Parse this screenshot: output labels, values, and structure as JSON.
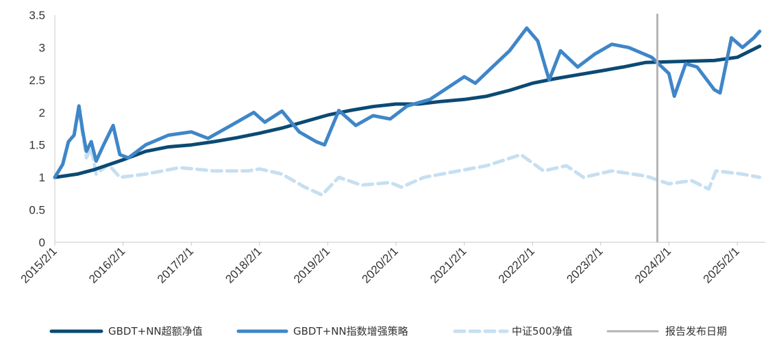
{
  "chart_data": {
    "type": "line",
    "yticks": [
      "0",
      "0.5",
      "1",
      "1.5",
      "2",
      "2.5",
      "3",
      "3.5"
    ],
    "xticks": [
      "2015/2/1",
      "2016/2/1",
      "2017/2/1",
      "2018/2/1",
      "2019/2/1",
      "2020/2/1",
      "2021/2/1",
      "2022/2/1",
      "2023/2/1",
      "2024/2/1",
      "2025/2/1"
    ],
    "ylim": [
      0,
      3.5
    ],
    "xlim": [
      "2015-02-01",
      "2025-07-01"
    ],
    "grid": false,
    "legend_position": "bottom",
    "report_date": "2023-12-01",
    "colors": {
      "excess": "#0b4a73",
      "strategy": "#3f86c8",
      "csi500": "#c6dff1",
      "report": "#b3b3b3",
      "axis": "#c8c8c8"
    },
    "series": [
      {
        "key": "excess",
        "name": "GBDT+NN超额净值",
        "style": "solid",
        "points": [
          [
            "2015-02-01",
            1.0
          ],
          [
            "2015-06-01",
            1.05
          ],
          [
            "2015-09-01",
            1.12
          ],
          [
            "2016-02-01",
            1.27
          ],
          [
            "2016-06-01",
            1.4
          ],
          [
            "2016-10-01",
            1.47
          ],
          [
            "2017-02-01",
            1.5
          ],
          [
            "2017-06-01",
            1.55
          ],
          [
            "2017-10-01",
            1.61
          ],
          [
            "2018-02-01",
            1.68
          ],
          [
            "2018-06-01",
            1.76
          ],
          [
            "2018-10-01",
            1.86
          ],
          [
            "2019-02-01",
            1.96
          ],
          [
            "2019-06-01",
            2.03
          ],
          [
            "2019-10-01",
            2.09
          ],
          [
            "2020-02-01",
            2.13
          ],
          [
            "2020-06-01",
            2.13
          ],
          [
            "2020-10-01",
            2.17
          ],
          [
            "2021-02-01",
            2.2
          ],
          [
            "2021-06-01",
            2.25
          ],
          [
            "2021-10-01",
            2.34
          ],
          [
            "2022-02-01",
            2.45
          ],
          [
            "2022-06-01",
            2.52
          ],
          [
            "2022-10-01",
            2.58
          ],
          [
            "2023-02-01",
            2.64
          ],
          [
            "2023-06-01",
            2.7
          ],
          [
            "2023-10-01",
            2.77
          ],
          [
            "2024-02-01",
            2.78
          ],
          [
            "2024-06-01",
            2.79
          ],
          [
            "2024-10-01",
            2.8
          ],
          [
            "2025-02-01",
            2.85
          ],
          [
            "2025-06-01",
            3.02
          ]
        ]
      },
      {
        "key": "strategy",
        "name": "GBDT+NN指数增强策略",
        "style": "solid",
        "points": [
          [
            "2015-02-01",
            1.0
          ],
          [
            "2015-03-15",
            1.2
          ],
          [
            "2015-04-15",
            1.55
          ],
          [
            "2015-05-15",
            1.65
          ],
          [
            "2015-06-10",
            2.1
          ],
          [
            "2015-07-01",
            1.7
          ],
          [
            "2015-07-20",
            1.4
          ],
          [
            "2015-08-15",
            1.55
          ],
          [
            "2015-09-10",
            1.25
          ],
          [
            "2015-10-20",
            1.5
          ],
          [
            "2015-12-10",
            1.8
          ],
          [
            "2016-01-15",
            1.35
          ],
          [
            "2016-03-01",
            1.3
          ],
          [
            "2016-06-01",
            1.5
          ],
          [
            "2016-10-01",
            1.65
          ],
          [
            "2017-02-01",
            1.7
          ],
          [
            "2017-05-01",
            1.6
          ],
          [
            "2017-09-01",
            1.8
          ],
          [
            "2018-01-01",
            2.0
          ],
          [
            "2018-03-01",
            1.85
          ],
          [
            "2018-06-01",
            2.02
          ],
          [
            "2018-09-01",
            1.7
          ],
          [
            "2018-12-01",
            1.55
          ],
          [
            "2019-01-15",
            1.5
          ],
          [
            "2019-04-01",
            2.03
          ],
          [
            "2019-07-01",
            1.8
          ],
          [
            "2019-10-01",
            1.95
          ],
          [
            "2020-01-01",
            1.9
          ],
          [
            "2020-04-01",
            2.1
          ],
          [
            "2020-08-01",
            2.2
          ],
          [
            "2021-02-01",
            2.55
          ],
          [
            "2021-04-01",
            2.45
          ],
          [
            "2021-07-01",
            2.7
          ],
          [
            "2021-10-01",
            2.95
          ],
          [
            "2022-01-01",
            3.3
          ],
          [
            "2022-03-01",
            3.1
          ],
          [
            "2022-05-01",
            2.5
          ],
          [
            "2022-07-01",
            2.95
          ],
          [
            "2022-10-01",
            2.7
          ],
          [
            "2023-01-01",
            2.9
          ],
          [
            "2023-04-01",
            3.05
          ],
          [
            "2023-07-01",
            3.0
          ],
          [
            "2023-11-01",
            2.85
          ],
          [
            "2024-02-01",
            2.6
          ],
          [
            "2024-03-01",
            2.25
          ],
          [
            "2024-05-01",
            2.75
          ],
          [
            "2024-07-01",
            2.7
          ],
          [
            "2024-10-01",
            2.35
          ],
          [
            "2024-11-01",
            2.3
          ],
          [
            "2025-01-01",
            3.15
          ],
          [
            "2025-03-01",
            3.0
          ],
          [
            "2025-05-01",
            3.15
          ],
          [
            "2025-06-01",
            3.25
          ]
        ]
      },
      {
        "key": "csi500",
        "name": "中证500净值",
        "style": "dashed",
        "points": [
          [
            "2015-02-01",
            1.0
          ],
          [
            "2015-03-15",
            1.2
          ],
          [
            "2015-04-15",
            1.55
          ],
          [
            "2015-05-15",
            1.65
          ],
          [
            "2015-06-10",
            2.05
          ],
          [
            "2015-07-01",
            1.65
          ],
          [
            "2015-07-20",
            1.3
          ],
          [
            "2015-08-15",
            1.45
          ],
          [
            "2015-09-10",
            1.05
          ],
          [
            "2015-11-15",
            1.2
          ],
          [
            "2016-01-15",
            1.0
          ],
          [
            "2016-06-01",
            1.05
          ],
          [
            "2016-12-01",
            1.15
          ],
          [
            "2017-06-01",
            1.1
          ],
          [
            "2017-12-01",
            1.1
          ],
          [
            "2018-02-01",
            1.13
          ],
          [
            "2018-06-01",
            1.05
          ],
          [
            "2018-10-01",
            0.85
          ],
          [
            "2019-01-01",
            0.73
          ],
          [
            "2019-04-01",
            1.0
          ],
          [
            "2019-08-01",
            0.88
          ],
          [
            "2020-01-01",
            0.92
          ],
          [
            "2020-03-01",
            0.85
          ],
          [
            "2020-07-01",
            1.0
          ],
          [
            "2021-01-01",
            1.1
          ],
          [
            "2021-06-01",
            1.18
          ],
          [
            "2021-12-01",
            1.35
          ],
          [
            "2022-04-01",
            1.1
          ],
          [
            "2022-08-01",
            1.18
          ],
          [
            "2022-11-01",
            1.0
          ],
          [
            "2023-04-01",
            1.1
          ],
          [
            "2023-10-01",
            1.02
          ],
          [
            "2024-02-01",
            0.9
          ],
          [
            "2024-06-01",
            0.95
          ],
          [
            "2024-09-01",
            0.82
          ],
          [
            "2024-10-10",
            1.1
          ],
          [
            "2025-03-01",
            1.05
          ],
          [
            "2025-06-01",
            1.0
          ]
        ]
      },
      {
        "key": "report",
        "name": "报告发布日期",
        "style": "vertical"
      }
    ]
  }
}
